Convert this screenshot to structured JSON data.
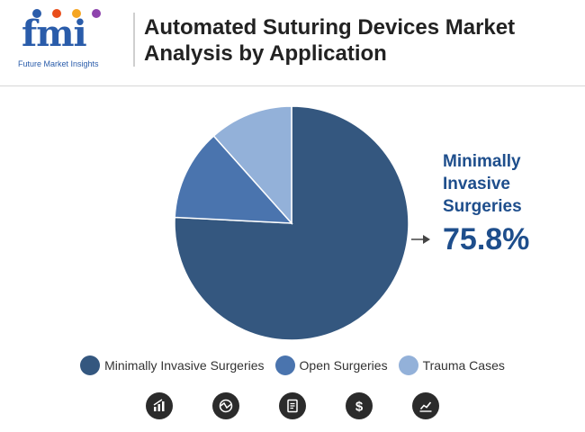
{
  "header": {
    "logo_letters": "fmi",
    "logo_tagline": "Future Market Insights",
    "title": "Automated Suturing Devices Market Analysis by Application"
  },
  "chart_data": {
    "type": "pie",
    "title": "Automated Suturing Devices Market Analysis by Application",
    "slices": [
      {
        "name": "Minimally Invasive Surgeries",
        "value": 75.8,
        "color": "#34577f"
      },
      {
        "name": "Open Surgeries",
        "value": 12.6,
        "color": "#4a74ae"
      },
      {
        "name": "Trauma Cases",
        "value": 11.6,
        "color": "#93b1d9"
      }
    ],
    "legend_placement": "bottom",
    "callout": {
      "label": "Minimally Invasive Surgeries",
      "value": "75.8%"
    }
  },
  "colors": {
    "title": "#222222",
    "brand": "#2a5caa",
    "callout": "#1e4e8c",
    "icon_bg": "#2b2b2b"
  },
  "footer_icons": [
    "bar-chart-icon",
    "globe-chart-icon",
    "document-icon",
    "dollar-icon",
    "trend-chart-icon"
  ]
}
